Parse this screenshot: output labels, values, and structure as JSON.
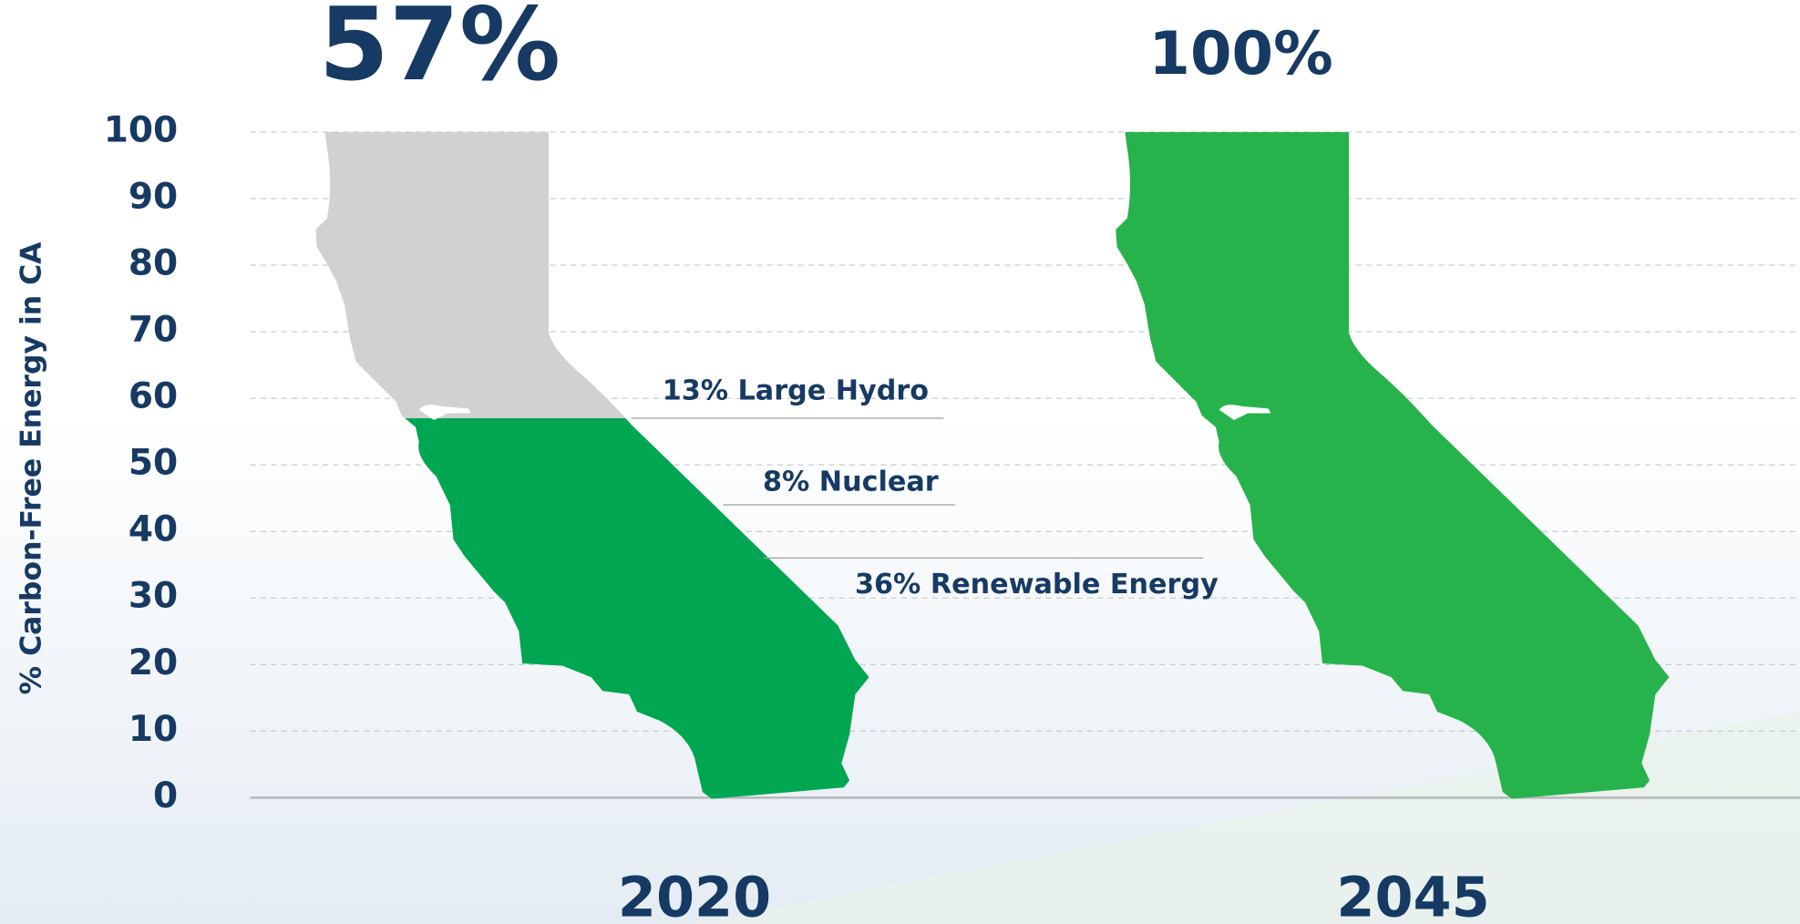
{
  "chart_data": {
    "type": "state-fill",
    "y_label": "% Carbon-Free Energy in CA",
    "categories": [
      "2020",
      "2045"
    ],
    "values": [
      57,
      100
    ],
    "value_labels": [
      "57%",
      "100%"
    ],
    "colors": [
      "#00a651",
      "#27b34b"
    ],
    "empty_color": "#d0d1d3",
    "segments": [
      {
        "name": "36% Renewable Energy",
        "value": 36
      },
      {
        "name": "8% Nuclear",
        "value": 8
      },
      {
        "name": "13% Large Hydro",
        "value": 13
      }
    ],
    "ylim": [
      0,
      100
    ],
    "yticks": [
      0,
      10,
      20,
      30,
      40,
      50,
      60,
      70,
      80,
      90,
      100
    ],
    "grid": true
  }
}
